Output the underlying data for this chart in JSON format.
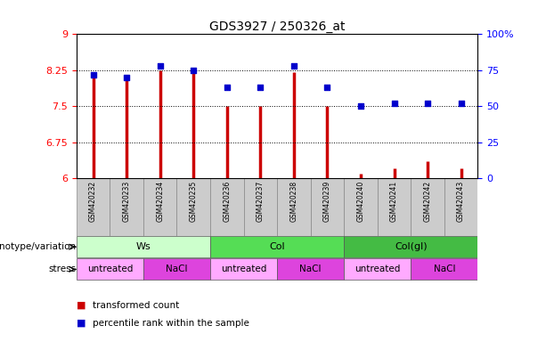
{
  "title": "GDS3927 / 250326_at",
  "samples": [
    "GSM420232",
    "GSM420233",
    "GSM420234",
    "GSM420235",
    "GSM420236",
    "GSM420237",
    "GSM420238",
    "GSM420239",
    "GSM420240",
    "GSM420241",
    "GSM420242",
    "GSM420243"
  ],
  "bar_values": [
    8.1,
    8.1,
    8.25,
    8.25,
    7.5,
    7.5,
    8.2,
    7.5,
    6.1,
    6.2,
    6.35,
    6.2
  ],
  "dot_values": [
    72,
    70,
    78,
    75,
    63,
    63,
    78,
    63,
    50,
    52,
    52,
    52
  ],
  "ylim_left": [
    6,
    9
  ],
  "ylim_right": [
    0,
    100
  ],
  "yticks_left": [
    6,
    6.75,
    7.5,
    8.25,
    9
  ],
  "yticks_right": [
    0,
    25,
    50,
    75,
    100
  ],
  "ytick_labels_left": [
    "6",
    "6.75",
    "7.5",
    "8.25",
    "9"
  ],
  "ytick_labels_right": [
    "0",
    "25",
    "50",
    "75",
    "100%"
  ],
  "hlines": [
    6.75,
    7.5,
    8.25
  ],
  "bar_color": "#cc0000",
  "dot_color": "#0000cc",
  "bar_bottom": 6,
  "genotype_groups": [
    {
      "label": "Ws",
      "start": 0,
      "end": 3,
      "color": "#ccffcc"
    },
    {
      "label": "Col",
      "start": 4,
      "end": 7,
      "color": "#55dd55"
    },
    {
      "label": "Col(gl)",
      "start": 8,
      "end": 11,
      "color": "#44bb44"
    }
  ],
  "stress_groups": [
    {
      "label": "untreated",
      "start": 0,
      "end": 1,
      "color": "#ffaaff"
    },
    {
      "label": "NaCl",
      "start": 2,
      "end": 3,
      "color": "#dd44dd"
    },
    {
      "label": "untreated",
      "start": 4,
      "end": 5,
      "color": "#ffaaff"
    },
    {
      "label": "NaCl",
      "start": 6,
      "end": 7,
      "color": "#dd44dd"
    },
    {
      "label": "untreated",
      "start": 8,
      "end": 9,
      "color": "#ffaaff"
    },
    {
      "label": "NaCl",
      "start": 10,
      "end": 11,
      "color": "#dd44dd"
    }
  ],
  "legend_bar_label": "transformed count",
  "legend_dot_label": "percentile rank within the sample",
  "genotype_label": "genotype/variation",
  "stress_label": "stress",
  "background_color": "#ffffff",
  "plot_bg_color": "#ffffff",
  "xtick_bg_color": "#cccccc"
}
